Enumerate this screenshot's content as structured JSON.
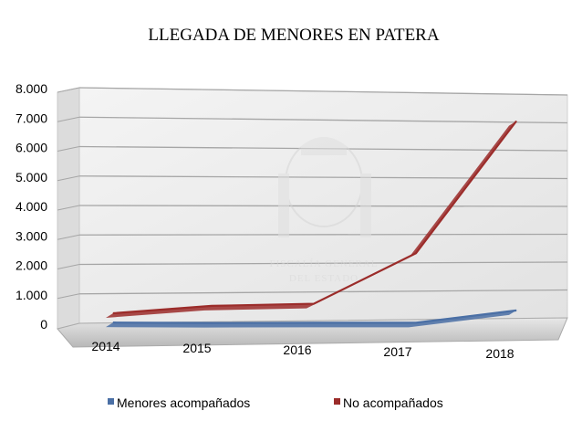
{
  "chart_data": {
    "type": "line",
    "title": "LLEGADA DE MENORES EN PATERA",
    "categories": [
      "2014",
      "2015",
      "2016",
      "2017",
      "2018"
    ],
    "series": [
      {
        "name": "Menores acompañados",
        "values": [
          200,
          150,
          120,
          80,
          480
        ],
        "color": "#4a6fa5"
      },
      {
        "name": "No acompañados",
        "values": [
          330,
          550,
          590,
          2340,
          7040
        ],
        "color": "#9b2c2a"
      }
    ],
    "ylim": [
      0,
      8000
    ],
    "yticks": [
      "0",
      "1.000",
      "2.000",
      "3.000",
      "4.000",
      "5.000",
      "6.000",
      "7.000",
      "8.000"
    ],
    "grid": true,
    "legend_position": "bottom",
    "watermark": [
      "FISCALÍA GENERAL",
      "DEL ESTADO"
    ]
  }
}
